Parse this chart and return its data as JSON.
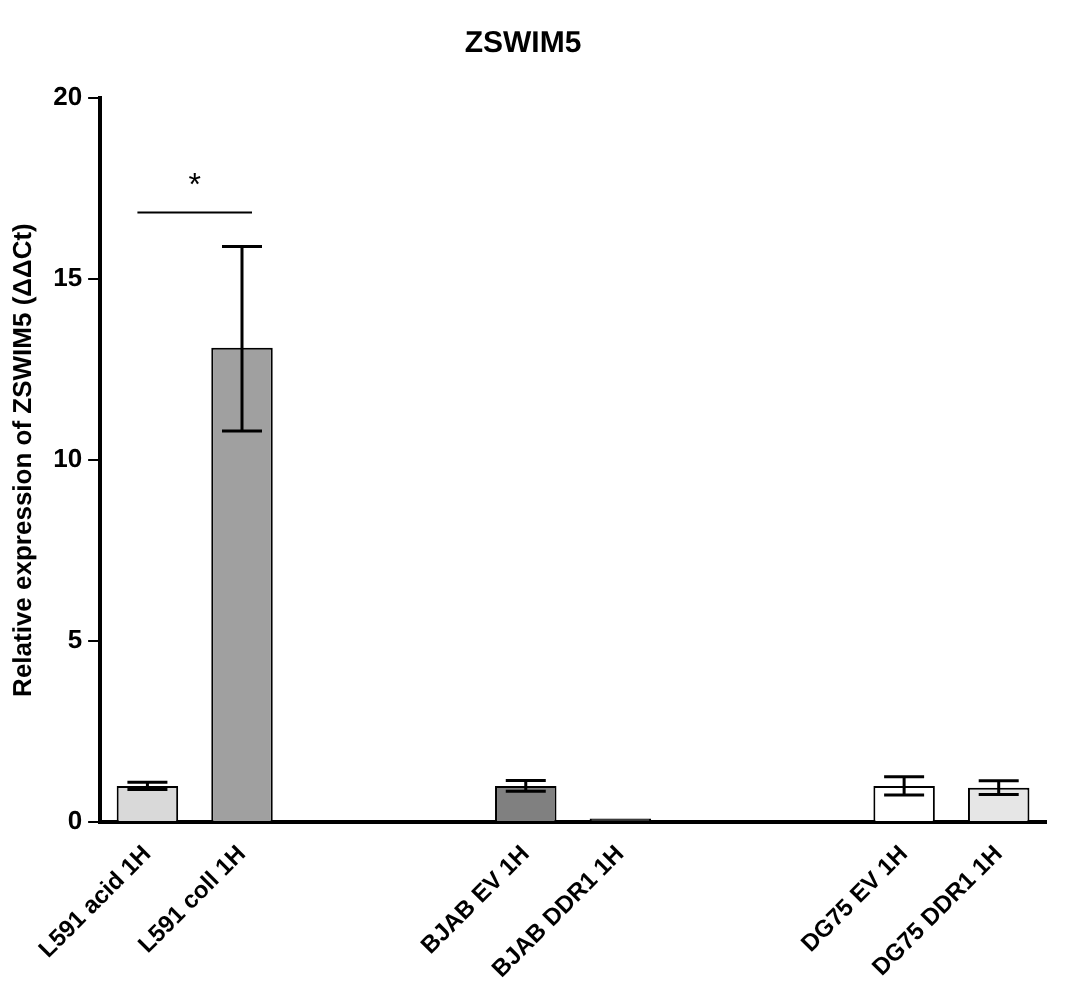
{
  "chart_data": {
    "type": "bar",
    "title": "ZSWIM5",
    "ylabel": "Relative expression of ZSWIM5 (ΔΔCt)",
    "categories": [
      "L591 acid 1H",
      "L591 coll 1H",
      null,
      null,
      "BJAB EV 1H",
      "BJAB DDR1 1H",
      null,
      null,
      "DG75 EV 1H",
      "DG75 DDR1 1H"
    ],
    "values": [
      1.0,
      13.1,
      null,
      null,
      1.0,
      0.1,
      null,
      null,
      1.0,
      0.95
    ],
    "colors": [
      "#d9d9d9",
      "#a0a0a0",
      "#ffffff",
      "#ffffff",
      "#808080",
      "#333333",
      "#ffffff",
      "#ffffff",
      "#ffffff",
      "#e6e6e6"
    ],
    "errors": [
      0.1,
      [
        10.8,
        15.9
      ],
      null,
      null,
      0.15,
      null,
      null,
      null,
      0.25,
      0.19
    ],
    "ylim": [
      0,
      20
    ],
    "yticks": [
      0,
      5,
      10,
      15,
      20
    ],
    "grid": false,
    "legend": false,
    "annotations": [
      "*"
    ]
  }
}
